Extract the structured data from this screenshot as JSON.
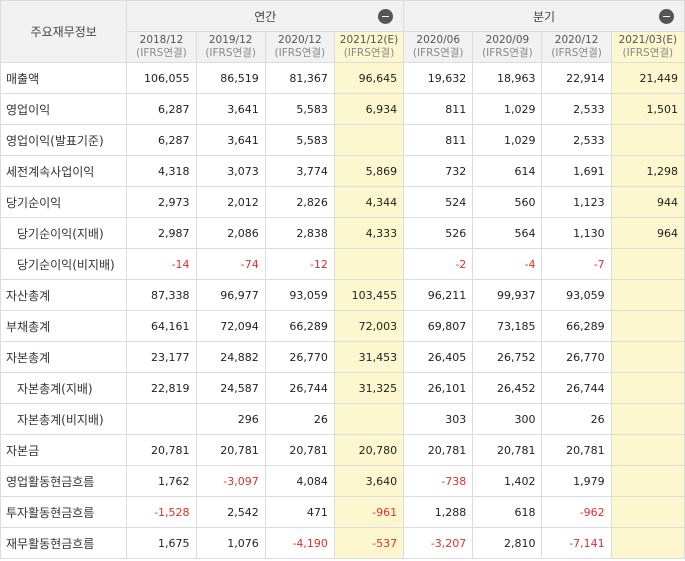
{
  "header": {
    "row_label": "주요재무정보",
    "annual_label": "연간",
    "quarter_label": "분기",
    "collapse_symbol": "minus-circle-icon"
  },
  "colors": {
    "estimate_bg": "#fdf7cf",
    "negative": "#e0312b",
    "header_bg": "#f1f1f1"
  },
  "periods": [
    {
      "date": "2018/12",
      "basis": "(IFRS연결)",
      "estimate": false
    },
    {
      "date": "2019/12",
      "basis": "(IFRS연결)",
      "estimate": false
    },
    {
      "date": "2020/12",
      "basis": "(IFRS연결)",
      "estimate": false
    },
    {
      "date": "2021/12(E)",
      "basis": "(IFRS연결)",
      "estimate": true
    },
    {
      "date": "2020/06",
      "basis": "(IFRS연결)",
      "estimate": false
    },
    {
      "date": "2020/09",
      "basis": "(IFRS연결)",
      "estimate": false
    },
    {
      "date": "2020/12",
      "basis": "(IFRS연결)",
      "estimate": false
    },
    {
      "date": "2021/03(E)",
      "basis": "(IFRS연결)",
      "estimate": true
    }
  ],
  "rows": [
    {
      "label": "매출액",
      "sub": false,
      "values": [
        "106,055",
        "86,519",
        "81,367",
        "96,645",
        "19,632",
        "18,963",
        "22,914",
        "21,449"
      ]
    },
    {
      "label": "영업이익",
      "sub": false,
      "values": [
        "6,287",
        "3,641",
        "5,583",
        "6,934",
        "811",
        "1,029",
        "2,533",
        "1,501"
      ]
    },
    {
      "label": "영업이익(발표기준)",
      "sub": false,
      "values": [
        "6,287",
        "3,641",
        "5,583",
        "",
        "811",
        "1,029",
        "2,533",
        ""
      ]
    },
    {
      "label": "세전계속사업이익",
      "sub": false,
      "values": [
        "4,318",
        "3,073",
        "3,774",
        "5,869",
        "732",
        "614",
        "1,691",
        "1,298"
      ]
    },
    {
      "label": "당기순이익",
      "sub": false,
      "values": [
        "2,973",
        "2,012",
        "2,826",
        "4,344",
        "524",
        "560",
        "1,123",
        "944"
      ]
    },
    {
      "label": "당기순이익(지배)",
      "sub": true,
      "values": [
        "2,987",
        "2,086",
        "2,838",
        "4,333",
        "526",
        "564",
        "1,130",
        "964"
      ]
    },
    {
      "label": "당기순이익(비지배)",
      "sub": true,
      "values": [
        "-14",
        "-74",
        "-12",
        "",
        "-2",
        "-4",
        "-7",
        ""
      ]
    },
    {
      "label": "자산총계",
      "sub": false,
      "values": [
        "87,338",
        "96,977",
        "93,059",
        "103,455",
        "96,211",
        "99,937",
        "93,059",
        ""
      ]
    },
    {
      "label": "부채총계",
      "sub": false,
      "values": [
        "64,161",
        "72,094",
        "66,289",
        "72,003",
        "69,807",
        "73,185",
        "66,289",
        ""
      ]
    },
    {
      "label": "자본총계",
      "sub": false,
      "values": [
        "23,177",
        "24,882",
        "26,770",
        "31,453",
        "26,405",
        "26,752",
        "26,770",
        ""
      ]
    },
    {
      "label": "자본총계(지배)",
      "sub": true,
      "values": [
        "22,819",
        "24,587",
        "26,744",
        "31,325",
        "26,101",
        "26,452",
        "26,744",
        ""
      ]
    },
    {
      "label": "자본총계(비지배)",
      "sub": true,
      "values": [
        "",
        "296",
        "26",
        "",
        "303",
        "300",
        "26",
        ""
      ]
    },
    {
      "label": "자본금",
      "sub": false,
      "values": [
        "20,781",
        "20,781",
        "20,781",
        "20,780",
        "20,781",
        "20,781",
        "20,781",
        ""
      ]
    },
    {
      "label": "영업활동현금흐름",
      "sub": false,
      "values": [
        "1,762",
        "-3,097",
        "4,084",
        "3,640",
        "-738",
        "1,402",
        "1,979",
        ""
      ]
    },
    {
      "label": "투자활동현금흐름",
      "sub": false,
      "values": [
        "-1,528",
        "2,542",
        "471",
        "-961",
        "1,288",
        "618",
        "-962",
        ""
      ]
    },
    {
      "label": "재무활동현금흐름",
      "sub": false,
      "values": [
        "1,675",
        "1,076",
        "-4,190",
        "-537",
        "-3,207",
        "2,810",
        "-7,141",
        ""
      ]
    }
  ]
}
